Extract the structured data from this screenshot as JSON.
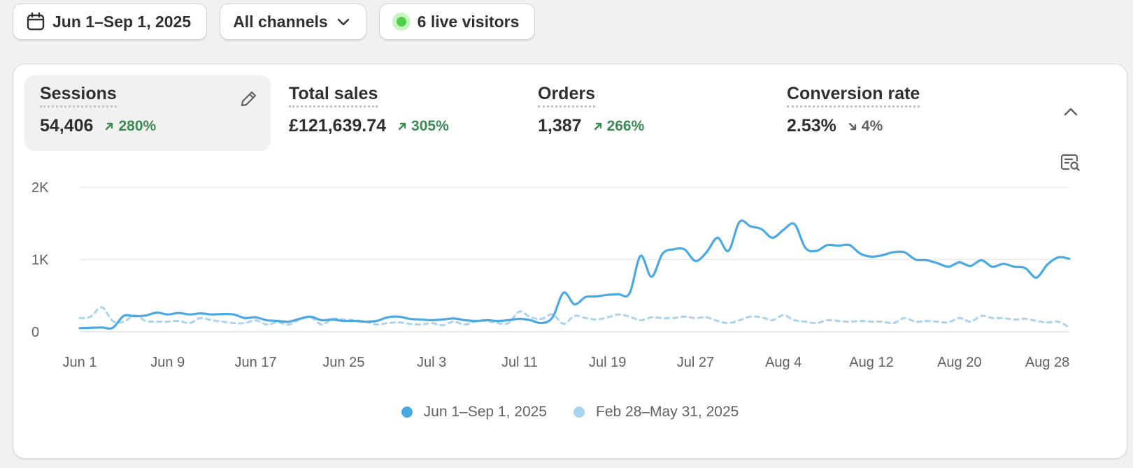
{
  "toolbar": {
    "date_range": "Jun 1–Sep 1, 2025",
    "channels": "All channels",
    "live_visitors": "6 live visitors"
  },
  "metrics": [
    {
      "title": "Sessions",
      "value": "54,406",
      "delta": "280%",
      "direction": "up"
    },
    {
      "title": "Total sales",
      "value": "£121,639.74",
      "delta": "305%",
      "direction": "up"
    },
    {
      "title": "Orders",
      "value": "1,387",
      "delta": "266%",
      "direction": "up"
    },
    {
      "title": "Conversion rate",
      "value": "2.53%",
      "delta": "4%",
      "direction": "down"
    }
  ],
  "colors": {
    "current": "#4aa8e3",
    "previous": "#a9d3ee",
    "positive": "#3a8a53",
    "neutral": "#616161"
  },
  "chart_data": {
    "type": "line",
    "ylim": [
      0,
      2000
    ],
    "y_ticks": [
      0,
      1000,
      2000
    ],
    "y_tick_labels": [
      "0",
      "1K",
      "2K"
    ],
    "x_ticks": [
      0,
      8,
      16,
      24,
      32,
      40,
      48,
      56,
      64,
      72,
      80,
      88
    ],
    "x_tick_labels": [
      "Jun 1",
      "Jun 9",
      "Jun 17",
      "Jun 25",
      "Jul 3",
      "Jul 11",
      "Jul 19",
      "Jul 27",
      "Aug 4",
      "Aug 12",
      "Aug 20",
      "Aug 28"
    ],
    "grid": true,
    "legend_position": "bottom-center",
    "series": [
      {
        "name": "Jun 1–Sep 1, 2025",
        "style": "solid",
        "values": [
          50,
          55,
          60,
          55,
          220,
          215,
          225,
          265,
          240,
          260,
          240,
          255,
          240,
          245,
          240,
          190,
          200,
          160,
          150,
          140,
          180,
          210,
          160,
          170,
          150,
          150,
          140,
          150,
          200,
          210,
          180,
          170,
          160,
          170,
          185,
          160,
          150,
          160,
          150,
          160,
          180,
          160,
          120,
          200,
          540,
          380,
          480,
          490,
          510,
          520,
          530,
          1050,
          760,
          1080,
          1140,
          1140,
          980,
          1100,
          1300,
          1120,
          1520,
          1460,
          1420,
          1300,
          1410,
          1490,
          1160,
          1120,
          1200,
          1190,
          1200,
          1080,
          1040,
          1060,
          1100,
          1100,
          1000,
          990,
          950,
          900,
          960,
          910,
          990,
          900,
          940,
          900,
          880,
          750,
          930,
          1030,
          1010
        ]
      },
      {
        "name": "Feb 28–May 31, 2025",
        "style": "dashed",
        "values": [
          190,
          210,
          340,
          150,
          140,
          230,
          150,
          140,
          140,
          150,
          120,
          190,
          160,
          140,
          120,
          120,
          160,
          100,
          130,
          100,
          170,
          200,
          100,
          180,
          170,
          160,
          140,
          100,
          120,
          130,
          110,
          100,
          120,
          90,
          140,
          100,
          140,
          150,
          120,
          120,
          280,
          200,
          180,
          240,
          110,
          220,
          190,
          170,
          200,
          240,
          210,
          160,
          200,
          190,
          190,
          210,
          190,
          200,
          150,
          120,
          160,
          210,
          200,
          160,
          230,
          160,
          140,
          120,
          160,
          150,
          140,
          150,
          140,
          140,
          120,
          190,
          140,
          150,
          140,
          130,
          190,
          140,
          220,
          190,
          190,
          170,
          180,
          150,
          130,
          140,
          60
        ]
      }
    ]
  }
}
